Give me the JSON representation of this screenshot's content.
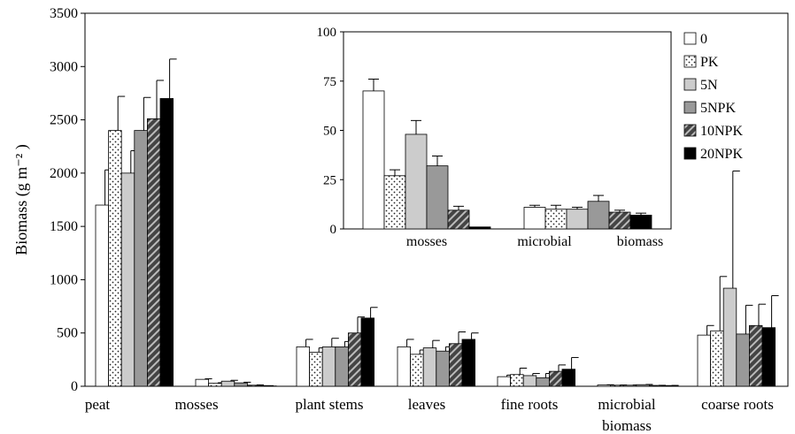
{
  "chart_data": [
    {
      "type": "bar",
      "ylabel": "Biomass  (g m⁻² )",
      "ylim": [
        0,
        3500
      ],
      "yticks": [
        0,
        500,
        1000,
        1500,
        2000,
        2500,
        3000,
        3500
      ],
      "categories": [
        "peat",
        "mosses",
        "plant stems",
        "leaves",
        "fine roots",
        "microbial biomass",
        "coarse roots"
      ],
      "category_lines": [
        [
          "peat"
        ],
        [
          "mosses"
        ],
        [
          "plant stems"
        ],
        [
          "leaves"
        ],
        [
          "fine roots"
        ],
        [
          "microbial",
          "biomass"
        ],
        [
          "coarse roots"
        ]
      ],
      "series": [
        {
          "name": "0",
          "values": [
            1700,
            65,
            370,
            370,
            90,
            12,
            480
          ],
          "errors": [
            330,
            5,
            70,
            70,
            15,
            2,
            90
          ]
        },
        {
          "name": "PK",
          "values": [
            2400,
            28,
            320,
            300,
            110,
            10,
            520
          ],
          "errors": [
            320,
            5,
            40,
            40,
            60,
            2,
            510
          ]
        },
        {
          "name": "5N",
          "values": [
            2000,
            48,
            370,
            360,
            100,
            10,
            920
          ],
          "errors": [
            210,
            8,
            80,
            70,
            20,
            2,
            1100
          ]
        },
        {
          "name": "5NPK",
          "values": [
            2400,
            32,
            370,
            330,
            80,
            15,
            490
          ],
          "errors": [
            310,
            6,
            50,
            40,
            40,
            2,
            270
          ]
        },
        {
          "name": "10NPK",
          "values": [
            2510,
            10,
            500,
            400,
            140,
            8,
            570
          ],
          "errors": [
            360,
            3,
            150,
            110,
            60,
            1,
            200
          ]
        },
        {
          "name": "20NPK",
          "values": [
            2700,
            1,
            640,
            440,
            160,
            7,
            550
          ],
          "errors": [
            370,
            1,
            100,
            60,
            110,
            1,
            300
          ]
        }
      ]
    },
    {
      "type": "bar",
      "ylim": [
        0,
        100
      ],
      "yticks": [
        0,
        25,
        50,
        75,
        100
      ],
      "categories": [
        "mosses",
        "microbial biomass"
      ],
      "label_parts": [
        "mosses",
        "microbial",
        "biomass"
      ],
      "series": [
        {
          "name": "0",
          "values": [
            70,
            11
          ],
          "errors": [
            6,
            1
          ]
        },
        {
          "name": "PK",
          "values": [
            27,
            10
          ],
          "errors": [
            3,
            2
          ]
        },
        {
          "name": "5N",
          "values": [
            48,
            10
          ],
          "errors": [
            7,
            1
          ]
        },
        {
          "name": "5NPK",
          "values": [
            32,
            14
          ],
          "errors": [
            5,
            3
          ]
        },
        {
          "name": "10NPK",
          "values": [
            9.5,
            8.5
          ],
          "errors": [
            2,
            1
          ]
        },
        {
          "name": "20NPK",
          "values": [
            1,
            7
          ],
          "errors": [
            0,
            1
          ]
        }
      ]
    }
  ],
  "legend": {
    "placement": "top-right",
    "items": [
      {
        "label": "0",
        "fill": "#ffffff",
        "pattern": "none"
      },
      {
        "label": "PK",
        "fill": "#ffffff",
        "pattern": "dots"
      },
      {
        "label": "5N",
        "fill": "#cccccc",
        "pattern": "none"
      },
      {
        "label": "5NPK",
        "fill": "#999999",
        "pattern": "none"
      },
      {
        "label": "10NPK",
        "fill": "#555555",
        "pattern": "stripes"
      },
      {
        "label": "20NPK",
        "fill": "#000000",
        "pattern": "none"
      }
    ]
  }
}
